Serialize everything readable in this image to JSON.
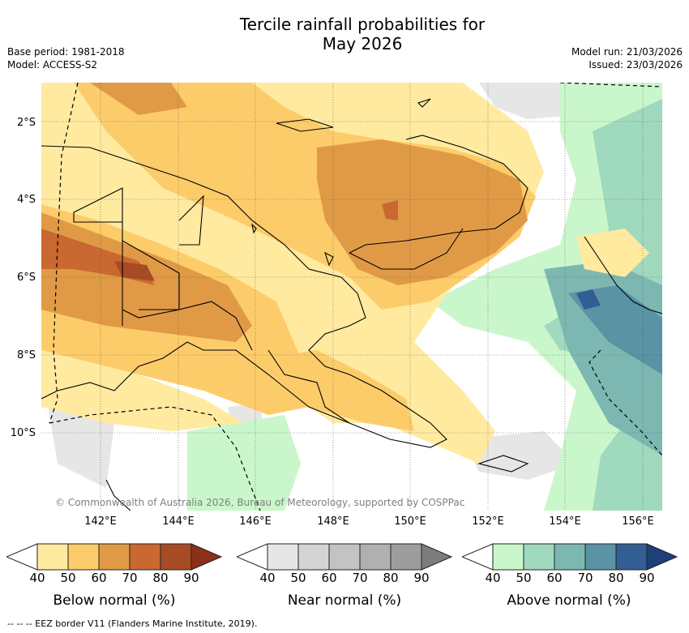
{
  "title_line1": "Tercile rainfall probabilities for",
  "title_line2": "May 2026",
  "base_period": "Base period: 1981-2018",
  "model": "Model: ACCESS-S2",
  "model_run": "Model run: 21/03/2026",
  "issued": "Issued: 23/03/2026",
  "lat_labels": [
    "2°S",
    "4°S",
    "6°S",
    "8°S",
    "10°S"
  ],
  "lon_labels": [
    "142°E",
    "144°E",
    "146°E",
    "148°E",
    "150°E",
    "152°E",
    "154°E",
    "156°E"
  ],
  "copyright": "© Commonwealth of Australia 2026, Bureau of Meteorology, supported by COSPPac",
  "colorbars": [
    {
      "label": "Below normal (%)",
      "ticks": [
        "40",
        "50",
        "60",
        "70",
        "80",
        "90"
      ],
      "colors": [
        "#ffffff",
        "#ffeaa0",
        "#fdcc6a",
        "#e09a46",
        "#c96831",
        "#a74b24",
        "#8a3118"
      ]
    },
    {
      "label": "Near normal (%)",
      "ticks": [
        "40",
        "50",
        "60",
        "70",
        "80",
        "90"
      ],
      "colors": [
        "#ffffff",
        "#e6e6e6",
        "#d4d4d4",
        "#c3c3c3",
        "#b0b0b0",
        "#9d9d9d",
        "#7d7d7d"
      ]
    },
    {
      "label": "Above normal (%)",
      "ticks": [
        "40",
        "50",
        "60",
        "70",
        "80",
        "90"
      ],
      "colors": [
        "#ffffff",
        "#c9f7cb",
        "#9fd9be",
        "#7cb8b1",
        "#5a93a3",
        "#325e93",
        "#1d3f7a"
      ]
    }
  ],
  "eez_note": "--  --  -- EEZ border V11 (Flanders Marine Institute, 2019)."
}
